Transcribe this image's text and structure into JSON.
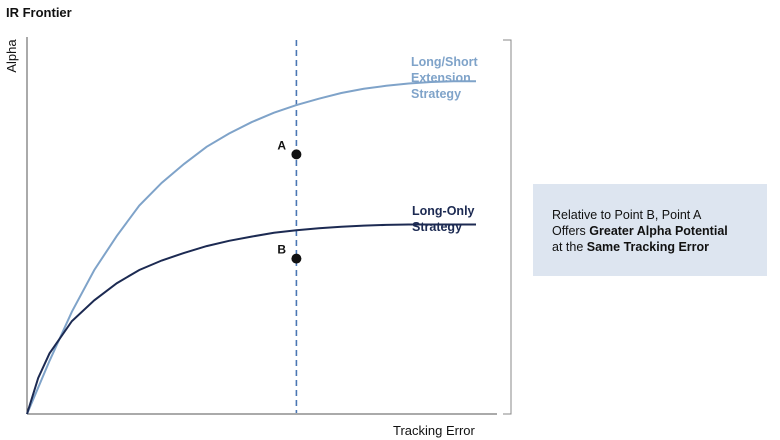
{
  "chart_data": {
    "type": "line",
    "title": "IR Frontier",
    "xlabel": "Tracking Error",
    "ylabel": "Alpha",
    "grid": false,
    "series": [
      {
        "name": "Long/Short Extension Strategy",
        "label_lines": [
          "Long/Short",
          "Extension",
          "Strategy"
        ],
        "color": "#7fa3c9",
        "style": "solid",
        "x": [
          0,
          0.05,
          0.1,
          0.15,
          0.2,
          0.25,
          0.3,
          0.35,
          0.4,
          0.45,
          0.5,
          0.55,
          0.6,
          0.65,
          0.7,
          0.75,
          0.8,
          0.85,
          0.9,
          0.95,
          1.0
        ],
        "y": [
          0,
          0.14,
          0.27,
          0.38,
          0.47,
          0.55,
          0.61,
          0.66,
          0.705,
          0.74,
          0.77,
          0.795,
          0.815,
          0.832,
          0.847,
          0.858,
          0.866,
          0.872,
          0.876,
          0.878,
          0.878
        ]
      },
      {
        "name": "Long-Only Strategy",
        "label_lines": [
          "Long-Only",
          "Strategy"
        ],
        "color": "#1c2a52",
        "style": "solid",
        "x": [
          0,
          0.025,
          0.05,
          0.1,
          0.15,
          0.2,
          0.25,
          0.3,
          0.35,
          0.4,
          0.45,
          0.5,
          0.55,
          0.6,
          0.65,
          0.7,
          0.75,
          0.8,
          0.85,
          0.9,
          0.95,
          1.0
        ],
        "y": [
          0,
          0.095,
          0.16,
          0.245,
          0.3,
          0.345,
          0.38,
          0.405,
          0.425,
          0.443,
          0.457,
          0.468,
          0.478,
          0.485,
          0.49,
          0.494,
          0.497,
          0.499,
          0.5,
          0.5,
          0.5,
          0.5
        ]
      }
    ],
    "reference_line": {
      "orientation": "vertical",
      "x": 0.6,
      "style": "dashed",
      "color": "#4a76b4"
    },
    "points": [
      {
        "label": "A",
        "x": 0.6,
        "y": 0.685
      },
      {
        "label": "B",
        "x": 0.6,
        "y": 0.41
      }
    ],
    "xlim": [
      0,
      1.0
    ],
    "ylim": [
      0,
      1.0
    ]
  },
  "callout": {
    "line1": "Relative to Point B, Point A",
    "line2_pre": "Offers ",
    "line2_bold": "Greater Alpha Potential",
    "line3_pre": "at the ",
    "line3_bold": "Same Tracking Error"
  }
}
